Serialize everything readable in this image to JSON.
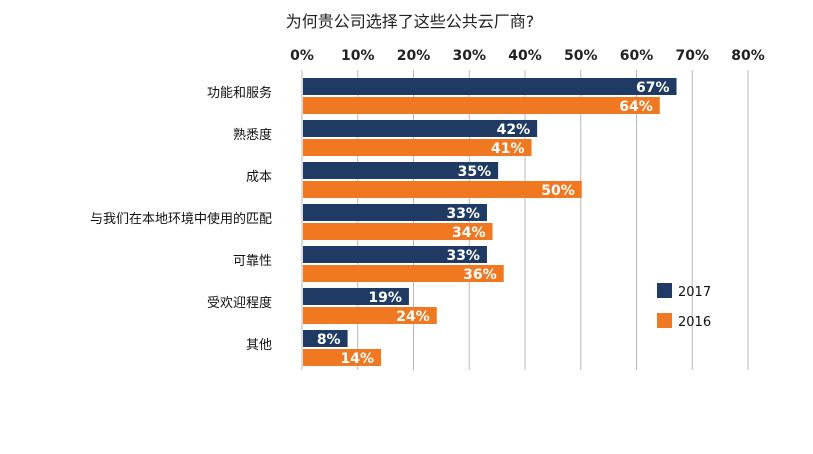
{
  "chart_data": {
    "type": "bar",
    "orientation": "horizontal",
    "title": "为何贵公司选择了这些公共云厂商?",
    "xlabel": "",
    "ylabel": "",
    "xlim": [
      0,
      80
    ],
    "x_ticks": [
      "0%",
      "10%",
      "20%",
      "30%",
      "40%",
      "50%",
      "60%",
      "70%",
      "80%"
    ],
    "tick_values": [
      0,
      10,
      20,
      30,
      40,
      50,
      60,
      70,
      80
    ],
    "grid": true,
    "legend_position": "right",
    "categories": [
      "功能和服务",
      "熟悉度",
      "成本",
      "与我们在本地环境中使用的匹配",
      "可靠性",
      "受欢迎程度",
      "其他"
    ],
    "series": [
      {
        "name": "2017",
        "color": "#1f3b64",
        "values": [
          67,
          42,
          35,
          33,
          33,
          19,
          8
        ],
        "labels": [
          "67%",
          "42%",
          "35%",
          "33%",
          "33%",
          "19%",
          "8%"
        ]
      },
      {
        "name": "2016",
        "color": "#f07820",
        "values": [
          64,
          41,
          50,
          34,
          36,
          24,
          14
        ],
        "labels": [
          "64%",
          "41%",
          "50%",
          "34%",
          "36%",
          "24%",
          "14%"
        ]
      }
    ]
  }
}
